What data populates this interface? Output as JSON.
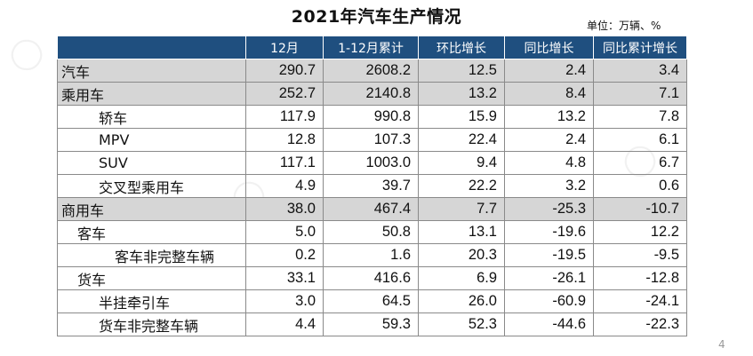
{
  "title": "2021年汽车生产情况",
  "unit": "单位：万辆、%",
  "page_number": "4",
  "headers": [
    "12月",
    "1-12月累计",
    "环比增长",
    "同比增长",
    "同比累计增长"
  ],
  "rows": [
    {
      "label": "汽车",
      "values": [
        "290.7",
        "2608.2",
        "12.5",
        "2.4",
        "3.4"
      ]
    },
    {
      "label": "乘用车",
      "values": [
        "252.7",
        "2140.8",
        "13.2",
        "8.4",
        "7.1"
      ]
    },
    {
      "label": "轿车",
      "values": [
        "117.9",
        "990.8",
        "15.9",
        "13.2",
        "7.8"
      ]
    },
    {
      "label": "MPV",
      "values": [
        "12.8",
        "107.3",
        "22.4",
        "2.4",
        "6.1"
      ]
    },
    {
      "label": "SUV",
      "values": [
        "117.1",
        "1003.0",
        "9.4",
        "4.8",
        "6.7"
      ]
    },
    {
      "label": "交叉型乘用车",
      "values": [
        "4.9",
        "39.7",
        "22.2",
        "3.2",
        "0.6"
      ]
    },
    {
      "label": "商用车",
      "values": [
        "38.0",
        "467.4",
        "7.7",
        "-25.3",
        "-10.7"
      ]
    },
    {
      "label": "客车",
      "values": [
        "5.0",
        "50.8",
        "13.1",
        "-19.6",
        "12.2"
      ]
    },
    {
      "label": "客车非完整车辆",
      "values": [
        "0.2",
        "1.6",
        "20.3",
        "-19.5",
        "-9.5"
      ]
    },
    {
      "label": "货车",
      "values": [
        "33.1",
        "416.6",
        "6.9",
        "-26.1",
        "-12.8"
      ]
    },
    {
      "label": "半挂牵引车",
      "values": [
        "3.0",
        "64.5",
        "26.0",
        "-60.9",
        "-24.1"
      ]
    },
    {
      "label": "货车非完整车辆",
      "values": [
        "4.4",
        "59.3",
        "52.3",
        "-44.6",
        "-22.3"
      ]
    }
  ]
}
